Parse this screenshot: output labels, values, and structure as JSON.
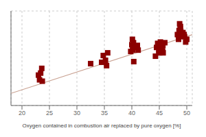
{
  "chart_data": {
    "type": "scatter",
    "xlabel": "Oxygen contained in combustion air replaced by pure oxygen [%]",
    "xlim": [
      18,
      51
    ],
    "ylim": [
      10,
      150
    ],
    "xticks": [
      20,
      25,
      30,
      35,
      40,
      45,
      50
    ],
    "yticks": [
      10,
      15,
      20,
      25,
      30,
      35,
      40,
      45,
      50,
      55,
      60,
      65,
      70,
      75,
      80,
      85,
      90,
      95,
      100,
      105,
      110,
      115,
      120,
      125,
      130,
      135,
      140,
      145,
      150
    ],
    "grid": true,
    "tick_labels": "x",
    "series": [
      {
        "type": "scatter",
        "color": "#8B0000",
        "marker": "square",
        "x": [
          23.0,
          23.2,
          23.4,
          23.6,
          23.7,
          32.5,
          34.5,
          34.8,
          35.2,
          35.4,
          35.6,
          39.8,
          40.0,
          40.1,
          40.15,
          40.2,
          40.3,
          40.35,
          40.9,
          41.0,
          41.15,
          44.3,
          44.5,
          44.7,
          44.9,
          44.95,
          45.0,
          45.05,
          45.1,
          45.2,
          45.3,
          45.4,
          45.5,
          45.6,
          45.65,
          45.7,
          46.0,
          48.3,
          48.5,
          48.6,
          48.7,
          48.8,
          48.85,
          48.9,
          49.0,
          49.1,
          49.3,
          49.5,
          49.6,
          49.8,
          50.0
        ],
        "values": [
          55,
          48,
          58,
          65,
          46,
          72,
          74,
          84,
          77,
          69,
          88,
          90,
          100,
          108,
          92,
          96,
          103,
          75,
          96,
          99,
          92,
          83,
          96,
          102,
          88,
          92,
          99,
          92,
          88,
          104,
          91,
          96,
          100,
          91,
          99,
          88,
          103,
          115,
          108,
          121,
          131,
          124,
          127,
          120,
          117,
          112,
          118,
          115,
          112,
          104,
          108
        ]
      },
      {
        "type": "line",
        "color": "#c8a090",
        "x": [
          18,
          51
        ],
        "values": [
          28,
          115
        ]
      }
    ]
  }
}
